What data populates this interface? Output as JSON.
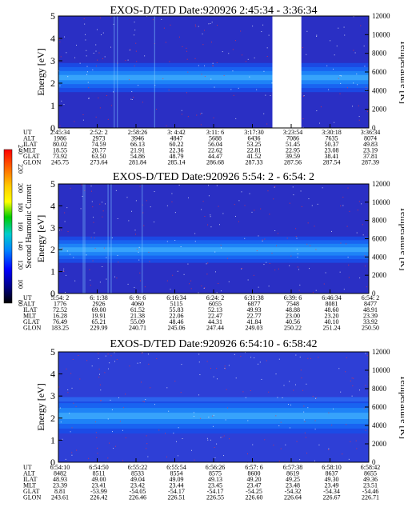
{
  "figure": {
    "colorbar": {
      "label": "Second Harmonic Current",
      "ticks": [
        "240",
        "220",
        "200",
        "180",
        "160",
        "140",
        "120",
        "100",
        "80"
      ],
      "colors": [
        "#ff0000",
        "#ff6600",
        "#ffcc00",
        "#ffff00",
        "#00cc00",
        "#00cccc",
        "#0080ff",
        "#0000ff",
        "#000080",
        "#000000"
      ]
    }
  },
  "chart_data": [
    {
      "type": "heatmap",
      "title": "EXOS-D/TED   Date:920926  2:45:34 - 3:36:34",
      "ylabel": "Energy [eV]",
      "y2label": "Temperature [K]",
      "ylim": [
        0,
        5
      ],
      "y2lim": [
        0,
        12000
      ],
      "yticks": [
        "0",
        "1",
        "2",
        "3",
        "4",
        "5"
      ],
      "y2ticks": [
        "0",
        "2000",
        "4000",
        "6000",
        "8000",
        "10000",
        "12000"
      ],
      "data_gap": [
        "3:17:30",
        "3:22:54"
      ],
      "band": {
        "low_eV": 1.6,
        "high_eV": 2.9
      },
      "ephemeris": {
        "labels": [
          "UT",
          "ALT",
          "ILAT",
          "MLT",
          "GLAT",
          "GLON"
        ],
        "columns": [
          [
            "2:45:34",
            "1986",
            "80.02",
            "18.55",
            "73.92",
            "245.75"
          ],
          [
            "2:52: 2",
            "2973",
            "74.59",
            "20.77",
            "63.50",
            "273.64"
          ],
          [
            "2:58:26",
            "3946",
            "66.13",
            "21.91",
            "54.86",
            "281.84"
          ],
          [
            "3: 4:42",
            "4847",
            "60.22",
            "22.36",
            "48.79",
            "285.14"
          ],
          [
            "3:11: 6",
            "5688",
            "56.04",
            "22.62",
            "44.47",
            "286.68"
          ],
          [
            "3:17:30",
            "6436",
            "53.25",
            "22.81",
            "41.52",
            "287.33"
          ],
          [
            "3:23:54",
            "7086",
            "51.45",
            "22.95",
            "39.59",
            "287.56"
          ],
          [
            "3:30:18",
            "7635",
            "50.37",
            "23.08",
            "38.41",
            "287.54"
          ],
          [
            "3:36:34",
            "8074",
            "49.83",
            "23.19",
            "37.81",
            "287.39"
          ]
        ]
      }
    },
    {
      "type": "heatmap",
      "title": "EXOS-D/TED   Date:920926  5:54: 2 - 6:54: 2",
      "ylabel": "Energy [eV]",
      "y2label": "Temperature [K]",
      "ylim": [
        0,
        5
      ],
      "y2lim": [
        0,
        12000
      ],
      "yticks": [
        "0",
        "1",
        "2",
        "3",
        "4",
        "5"
      ],
      "y2ticks": [
        "0",
        "2000",
        "4000",
        "6000",
        "8000",
        "10000",
        "12000"
      ],
      "band": {
        "low_eV": 1.4,
        "high_eV": 2.6
      },
      "ephemeris": {
        "labels": [
          "UT",
          "ALT",
          "ILAT",
          "MLT",
          "GLAT",
          "GLON"
        ],
        "columns": [
          [
            "5:54: 2",
            "1776",
            "72.52",
            "16.28",
            "76.49",
            "183.25"
          ],
          [
            "6: 1:38",
            "2926",
            "69.00",
            "19.91",
            "65.21",
            "229.99"
          ],
          [
            "6: 9: 6",
            "4060",
            "61.52",
            "21.38",
            "55.09",
            "240.71"
          ],
          [
            "6:16:34",
            "5115",
            "55.83",
            "22.06",
            "48.46",
            "245.06"
          ],
          [
            "6:24: 2",
            "6055",
            "52.13",
            "22.47",
            "44.31",
            "247.44"
          ],
          [
            "6:31:38",
            "6877",
            "49.93",
            "22.77",
            "41.84",
            "249.03"
          ],
          [
            "6:39: 6",
            "7548",
            "48.88",
            "23.00",
            "40.56",
            "250.22"
          ],
          [
            "6:46:34",
            "8081",
            "48.60",
            "23.20",
            "40.10",
            "251.24"
          ],
          [
            "6:54: 2",
            "8477",
            "48.91",
            "23.39",
            "33.92",
            "250.50"
          ]
        ]
      }
    },
    {
      "type": "heatmap",
      "title": "EXOS-D/TED   Date:920926  6:54:10 - 6:58:42",
      "ylabel": "Energy [eV]",
      "y2label": "Temperature [K]",
      "ylim": [
        0,
        5
      ],
      "y2lim": [
        0,
        12000
      ],
      "yticks": [
        "0",
        "1",
        "2",
        "3",
        "4",
        "5"
      ],
      "y2ticks": [
        "0",
        "2000",
        "4000",
        "6000",
        "8000",
        "10000",
        "12000"
      ],
      "band": {
        "low_eV": 1.3,
        "high_eV": 2.9
      },
      "ephemeris": {
        "labels": [
          "UT",
          "ALT",
          "ILAT",
          "MLT",
          "GLAT",
          "GLON"
        ],
        "columns": [
          [
            "6:54:10",
            "8482",
            "48.93",
            "23.39",
            "8.81",
            "243.61"
          ],
          [
            "6:54:50",
            "8511",
            "49.00",
            "23.41",
            "-53.99",
            "226.42"
          ],
          [
            "6:55:22",
            "8533",
            "49.04",
            "23.42",
            "-54.05",
            "226.46"
          ],
          [
            "6:55:54",
            "8554",
            "49.09",
            "23.44",
            "-54.17",
            "226.51"
          ],
          [
            "6:56:26",
            "8575",
            "49.13",
            "23.45",
            "-54.17",
            "226.55"
          ],
          [
            "6:57: 6",
            "8600",
            "49.20",
            "23.47",
            "-54.25",
            "226.60"
          ],
          [
            "6:57:38",
            "8619",
            "49.25",
            "23.48",
            "-54.32",
            "226.64"
          ],
          [
            "6:58:10",
            "8637",
            "49.30",
            "23.49",
            "-54.34",
            "226.67"
          ],
          [
            "6:58:42",
            "8655",
            "49.36",
            "23.51",
            "-54.46",
            "226.71"
          ]
        ]
      }
    }
  ]
}
